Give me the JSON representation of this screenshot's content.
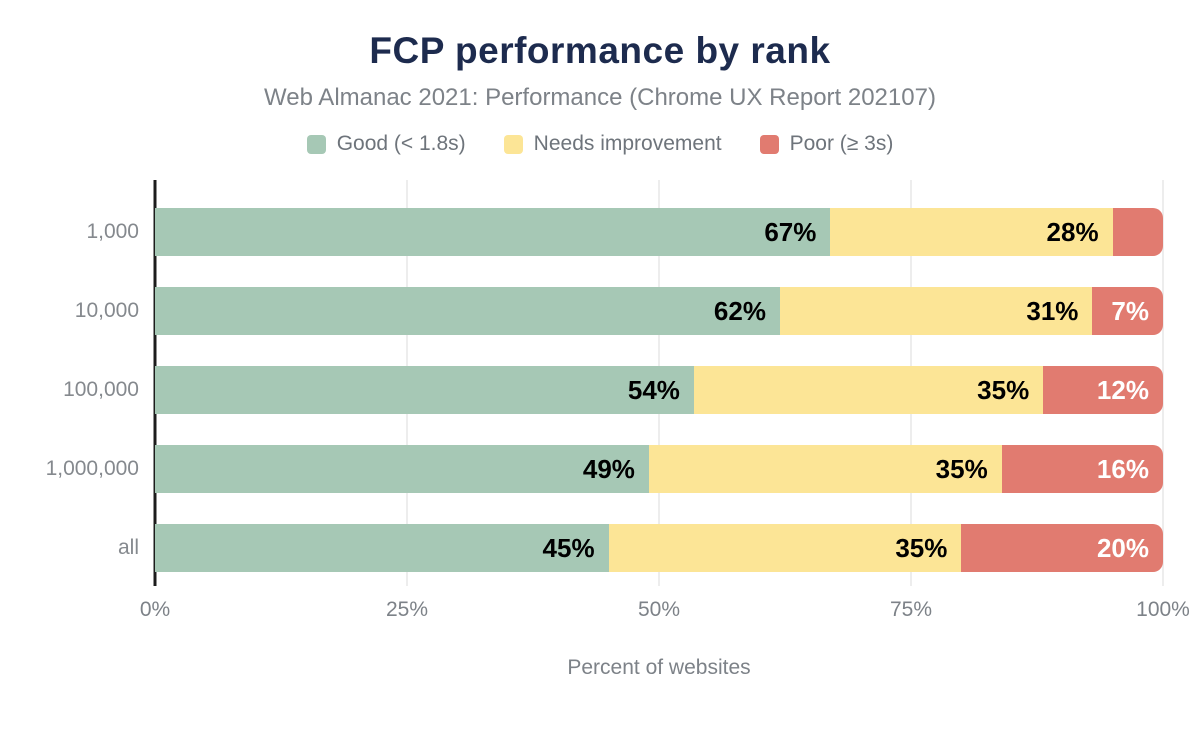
{
  "chart_data": {
    "type": "bar",
    "orientation": "horizontal",
    "stacked": true,
    "title": "FCP performance by rank",
    "subtitle": "Web Almanac 2021: Performance (Chrome UX Report 202107)",
    "xlabel": "Percent of websites",
    "categories": [
      "1,000",
      "10,000",
      "100,000",
      "1,000,000",
      "all"
    ],
    "series": [
      {
        "name": "Good (< 1.8s)",
        "color": "#a6c8b5",
        "label_color": "#000000",
        "values": [
          67,
          62,
          54,
          49,
          45
        ]
      },
      {
        "name": "Needs improvement",
        "color": "#fce596",
        "label_color": "#000000",
        "values": [
          28,
          31,
          35,
          35,
          35
        ]
      },
      {
        "name": "Poor (≥ 3s)",
        "color": "#e17b70",
        "label_color": "#ffffff",
        "values": [
          5,
          7,
          12,
          16,
          20
        ]
      }
    ],
    "data_labels": [
      [
        "67%",
        "28%",
        ""
      ],
      [
        "62%",
        "31%",
        "7%"
      ],
      [
        "54%",
        "35%",
        "12%"
      ],
      [
        "49%",
        "35%",
        "16%"
      ],
      [
        "45%",
        "35%",
        "20%"
      ]
    ],
    "x_ticks": [
      {
        "value": 0,
        "label": "0%"
      },
      {
        "value": 25,
        "label": "25%"
      },
      {
        "value": 50,
        "label": "50%"
      },
      {
        "value": 75,
        "label": "75%"
      },
      {
        "value": 100,
        "label": "100%"
      }
    ],
    "xlim": [
      0,
      100
    ],
    "grid": "vertical",
    "legend_position": "top"
  },
  "colors": {
    "title": "#1d2b4e",
    "subtitle": "#7d8288",
    "axis_text": "#85898e",
    "axis_line": "#1c1c1c",
    "gridline": "#ededed",
    "background": "#ffffff"
  }
}
